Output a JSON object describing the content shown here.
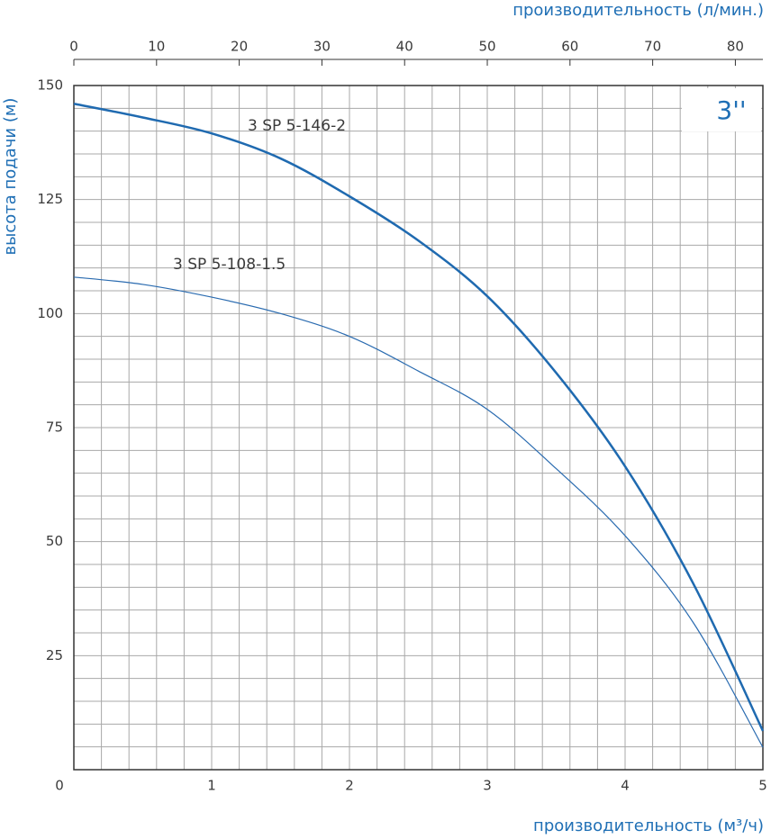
{
  "chart_data": {
    "type": "line",
    "title_top": "производительность (л/мин.)",
    "x_label": "производительность (м³/ч)",
    "y_label": "высота подачи (м)",
    "badge": "3''",
    "x": [
      0,
      0.5,
      1,
      1.5,
      2,
      2.5,
      3,
      3.5,
      4,
      4.5,
      5
    ],
    "series": [
      {
        "name": "3 SP 5-146-2",
        "color": "#1f6ab0",
        "values": [
          146,
          143,
          139.5,
          134,
          125.7,
          116,
          103.8,
          87,
          66.5,
          40.5,
          8.5
        ]
      },
      {
        "name": "3 SP 5-108-1.5",
        "color": "#2a6bb0",
        "values": [
          108,
          106.4,
          103.6,
          100,
          95,
          87.4,
          79,
          66,
          51.3,
          32,
          4.9
        ]
      }
    ],
    "xlim": [
      0,
      5
    ],
    "xticks": [
      0,
      1,
      2,
      3,
      4,
      5
    ],
    "x2lim": [
      0,
      83.33
    ],
    "x2ticks": [
      0,
      10,
      20,
      30,
      40,
      50,
      60,
      70,
      80
    ],
    "ylim": [
      0,
      150
    ],
    "yticks": [
      0,
      25,
      50,
      75,
      100,
      125,
      150
    ],
    "grid": true
  }
}
